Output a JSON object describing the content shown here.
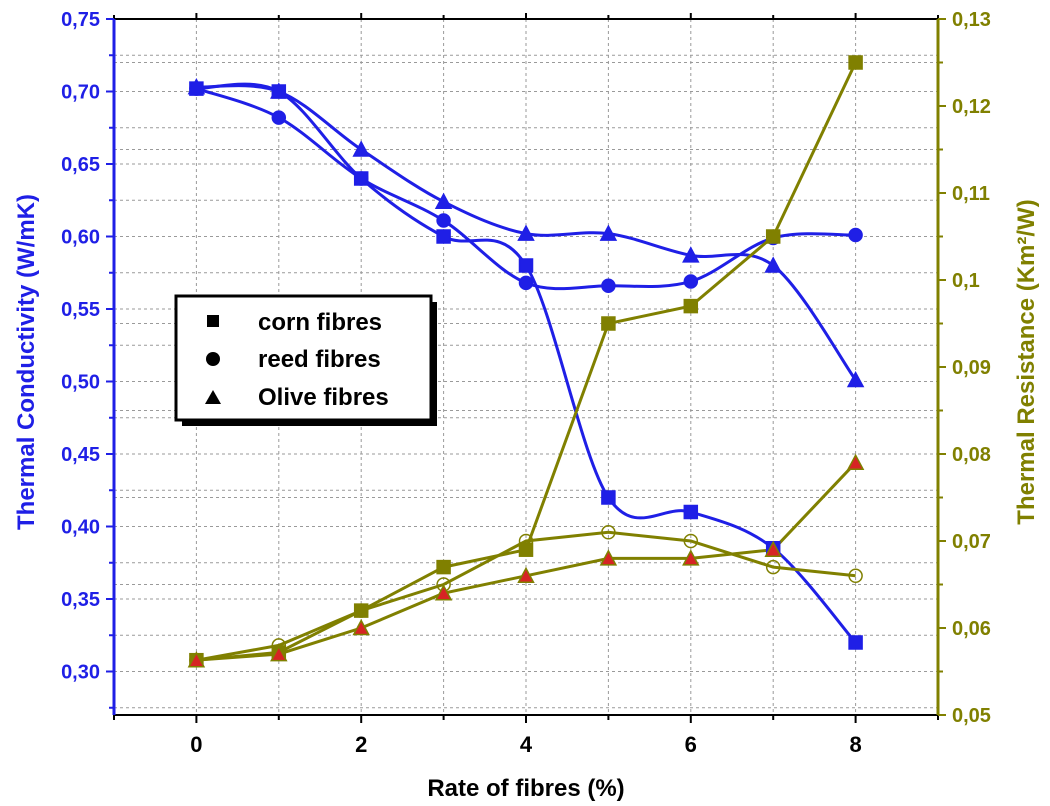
{
  "chart_data": {
    "type": "line",
    "xlabel": "Rate of fibres (%)",
    "ylabel_left": "Thermal Conductivity (W/mK)",
    "ylabel_right": "Thermal Resistance (Km²/W)",
    "xlim": [
      -1,
      9
    ],
    "ylim_left": [
      0.27,
      0.75
    ],
    "ylim_right": [
      0.05,
      0.13
    ],
    "x_ticks": [
      "0",
      "2",
      "4",
      "6",
      "8"
    ],
    "x_tick_values": [
      0,
      2,
      4,
      6,
      8
    ],
    "y_left_ticks": [
      "0,30",
      "0,35",
      "0,40",
      "0,45",
      "0,50",
      "0,55",
      "0,60",
      "0,65",
      "0,70",
      "0,75"
    ],
    "y_left_tick_values": [
      0.3,
      0.35,
      0.4,
      0.45,
      0.5,
      0.55,
      0.6,
      0.65,
      0.7,
      0.75
    ],
    "y_right_ticks": [
      "0,05",
      "0,06",
      "0,07",
      "0,08",
      "0,09",
      "0,1",
      "0,11",
      "0,12",
      "0,13"
    ],
    "y_right_tick_values": [
      0.05,
      0.06,
      0.07,
      0.08,
      0.09,
      0.1,
      0.11,
      0.12,
      0.13
    ],
    "grid": true,
    "legend_position": "middle-left",
    "left_color": "#1f1fe6",
    "right_color": "#808000",
    "marker_fill_right": "#d62424",
    "legend": [
      {
        "label": "corn fibres",
        "marker": "square"
      },
      {
        "label": "reed fibres",
        "marker": "circle"
      },
      {
        "label": "Olive fibres",
        "marker": "triangle"
      }
    ],
    "x": [
      0,
      1,
      2,
      3,
      4,
      5,
      6,
      7,
      8
    ],
    "series": [
      {
        "name": "corn fibres",
        "axis": "left",
        "marker": "square",
        "values": [
          0.702,
          0.7,
          0.64,
          0.6,
          0.58,
          0.42,
          0.41,
          0.385,
          0.32
        ]
      },
      {
        "name": "reed fibres",
        "axis": "left",
        "marker": "circle",
        "values": [
          0.702,
          0.682,
          0.64,
          0.611,
          0.568,
          0.566,
          0.569,
          0.599,
          0.601
        ]
      },
      {
        "name": "Olive fibres",
        "axis": "left",
        "marker": "triangle",
        "values": [
          0.703,
          0.7,
          0.66,
          0.624,
          0.602,
          0.602,
          0.587,
          0.58,
          0.501
        ]
      },
      {
        "name": "corn fibres",
        "axis": "right",
        "marker": "square",
        "values": [
          0.0563,
          0.0572,
          0.062,
          0.067,
          0.069,
          0.095,
          0.097,
          0.105,
          0.125
        ]
      },
      {
        "name": "reed fibres",
        "axis": "right",
        "marker": "circle",
        "values": [
          0.0563,
          0.058,
          0.062,
          0.065,
          0.07,
          0.071,
          0.07,
          0.067,
          0.066
        ]
      },
      {
        "name": "Olive fibres",
        "axis": "right",
        "marker": "triangle",
        "values": [
          0.0563,
          0.057,
          0.06,
          0.064,
          0.066,
          0.068,
          0.068,
          0.069,
          0.079
        ]
      }
    ]
  }
}
